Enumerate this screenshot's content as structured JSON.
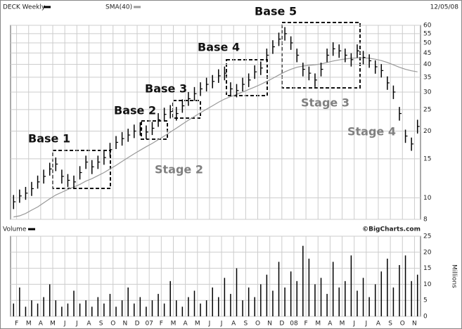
{
  "chart_data": [
    {
      "type": "ohlc",
      "date": "12/05/08",
      "log": true,
      "grid": true,
      "xlim": [
        -0.5,
        67.5
      ],
      "ylim": [
        8,
        60
      ],
      "yticks": [
        8,
        10,
        15,
        20,
        25,
        30,
        35,
        40,
        45,
        50,
        55,
        60
      ],
      "annotations": [
        "Base 1",
        "Base 2",
        "Base 3",
        "Base 4",
        "Base 5",
        "Stage 2",
        "Stage 3",
        "Stage 4"
      ],
      "series": [
        {
          "name": "DECK Weekly",
          "color": "#000000",
          "high": [
            10.3,
            10.9,
            11.2,
            11.8,
            12.6,
            13.4,
            14.4,
            15.2,
            13.4,
            12.8,
            12.6,
            13.9,
            15.5,
            14.8,
            15.5,
            16.3,
            17.7,
            19.0,
            19.8,
            20.5,
            21.4,
            21.9,
            21.2,
            22.0,
            24.1,
            25.5,
            26.2,
            25.7,
            27.8,
            30.0,
            31.6,
            33.2,
            34.8,
            35.8,
            38.0,
            39.1,
            33.2,
            32.6,
            34.8,
            36.4,
            39.6,
            41.2,
            47.1,
            51.4,
            55.6,
            58.9,
            53.5,
            47.1,
            40.7,
            39.1,
            36.4,
            40.7,
            47.1,
            50.3,
            49.2,
            47.1,
            44.9,
            49.2,
            46.0,
            44.4,
            41.7,
            40.1,
            35.3,
            32.1,
            25.7,
            20.3,
            18.7,
            22.5
          ],
          "low": [
            8.9,
            9.5,
            9.8,
            10.2,
            11.0,
            11.6,
            12.6,
            13.2,
            11.6,
            11.2,
            11.0,
            12.1,
            13.5,
            12.8,
            13.5,
            14.1,
            15.3,
            16.6,
            17.2,
            17.9,
            18.6,
            19.1,
            18.4,
            19.2,
            20.9,
            22.1,
            22.8,
            22.3,
            24.2,
            26.0,
            27.4,
            28.8,
            30.2,
            31.2,
            33.0,
            33.9,
            28.8,
            28.4,
            30.2,
            31.6,
            34.4,
            35.8,
            40.9,
            44.6,
            48.4,
            51.2,
            46.5,
            40.9,
            35.3,
            33.9,
            31.6,
            35.3,
            40.9,
            43.7,
            42.8,
            40.9,
            39.1,
            42.8,
            40.0,
            38.6,
            36.3,
            34.9,
            30.7,
            27.9,
            22.3,
            17.7,
            16.3,
            19.5
          ],
          "close": [
            9.6,
            10.2,
            10.5,
            11.0,
            11.8,
            12.5,
            13.5,
            14.2,
            12.5,
            12.0,
            11.8,
            13.0,
            14.5,
            13.8,
            14.5,
            15.2,
            16.5,
            17.8,
            18.5,
            19.2,
            20.0,
            20.5,
            19.8,
            20.6,
            22.5,
            23.8,
            24.5,
            24.0,
            26.0,
            28.0,
            29.5,
            31.0,
            32.5,
            33.5,
            35.5,
            36.5,
            31.0,
            30.5,
            32.5,
            34.0,
            37.0,
            38.5,
            44.0,
            48.0,
            52.0,
            55.0,
            50.0,
            44.0,
            38.0,
            36.5,
            34.0,
            38.0,
            44.0,
            47.0,
            46.0,
            44.0,
            42.0,
            46.0,
            43.0,
            41.5,
            39.0,
            37.5,
            33.0,
            30.0,
            24.0,
            19.0,
            17.5,
            21.0
          ]
        },
        {
          "name": "SMA(40)",
          "color": "#999999",
          "values": [
            8.2,
            8.3,
            8.5,
            8.8,
            9.1,
            9.5,
            9.9,
            10.3,
            10.6,
            10.9,
            11.2,
            11.5,
            11.9,
            12.2,
            12.6,
            13.0,
            13.5,
            14.0,
            14.6,
            15.2,
            15.8,
            16.4,
            17.0,
            17.6,
            18.3,
            19.0,
            19.8,
            20.6,
            21.5,
            22.4,
            23.3,
            24.2,
            25.1,
            26.0,
            27.0,
            27.9,
            28.6,
            29.3,
            30.0,
            30.8,
            31.6,
            32.5,
            33.5,
            34.6,
            35.8,
            37.0,
            38.0,
            38.8,
            39.3,
            39.6,
            39.8,
            40.2,
            40.8,
            41.4,
            41.9,
            42.3,
            42.6,
            42.8,
            42.8,
            42.6,
            42.2,
            41.6,
            40.8,
            39.8,
            38.8,
            38.0,
            37.4,
            37.0
          ]
        }
      ]
    },
    {
      "type": "bar",
      "title": "Volume",
      "source": "©BigCharts.com",
      "ylabel": "Millions",
      "color": "#000000",
      "grid": true,
      "xlim": [
        -0.5,
        67.5
      ],
      "ylim": [
        0,
        25
      ],
      "yticks": [
        0,
        5,
        10,
        15,
        20,
        25
      ],
      "xticks": [
        {
          "value": 0.5,
          "label": "F"
        },
        {
          "value": 2.5,
          "label": "M"
        },
        {
          "value": 4.5,
          "label": "A"
        },
        {
          "value": 6.5,
          "label": "M"
        },
        {
          "value": 8.5,
          "label": "J"
        },
        {
          "value": 10.5,
          "label": "J"
        },
        {
          "value": 12.5,
          "label": "A"
        },
        {
          "value": 14.5,
          "label": "S"
        },
        {
          "value": 16.5,
          "label": "O"
        },
        {
          "value": 18.5,
          "label": "N"
        },
        {
          "value": 20.5,
          "label": "D"
        },
        {
          "value": 22.5,
          "label": "07"
        },
        {
          "value": 24.5,
          "label": "F"
        },
        {
          "value": 26.5,
          "label": "M"
        },
        {
          "value": 28.5,
          "label": "A"
        },
        {
          "value": 30.5,
          "label": "M"
        },
        {
          "value": 32.5,
          "label": "J"
        },
        {
          "value": 34.5,
          "label": "J"
        },
        {
          "value": 36.5,
          "label": "A"
        },
        {
          "value": 38.5,
          "label": "S"
        },
        {
          "value": 40.5,
          "label": "O"
        },
        {
          "value": 42.5,
          "label": "N"
        },
        {
          "value": 44.5,
          "label": "D"
        },
        {
          "value": 46.5,
          "label": "08"
        },
        {
          "value": 48.5,
          "label": "F"
        },
        {
          "value": 50.5,
          "label": "M"
        },
        {
          "value": 52.5,
          "label": "A"
        },
        {
          "value": 54.5,
          "label": "M"
        },
        {
          "value": 56.5,
          "label": "J"
        },
        {
          "value": 58.5,
          "label": "J"
        },
        {
          "value": 60.5,
          "label": "A"
        },
        {
          "value": 62.5,
          "label": "S"
        },
        {
          "value": 64.5,
          "label": "O"
        },
        {
          "value": 66.5,
          "label": "N"
        }
      ],
      "values": [
        4,
        9,
        3,
        5,
        4,
        6,
        10,
        5,
        3,
        4,
        8,
        4,
        5,
        3,
        6,
        4,
        7,
        3,
        5,
        9,
        4,
        6,
        3,
        5,
        7,
        4,
        11,
        5,
        3,
        6,
        8,
        4,
        5,
        9,
        6,
        12,
        7,
        15,
        5,
        9,
        6,
        10,
        13,
        8,
        17,
        9,
        14,
        11,
        22,
        18,
        10,
        12,
        7,
        17,
        9,
        11,
        19,
        8,
        12,
        6,
        10,
        14,
        18,
        9,
        16,
        19,
        11,
        13
      ]
    }
  ]
}
